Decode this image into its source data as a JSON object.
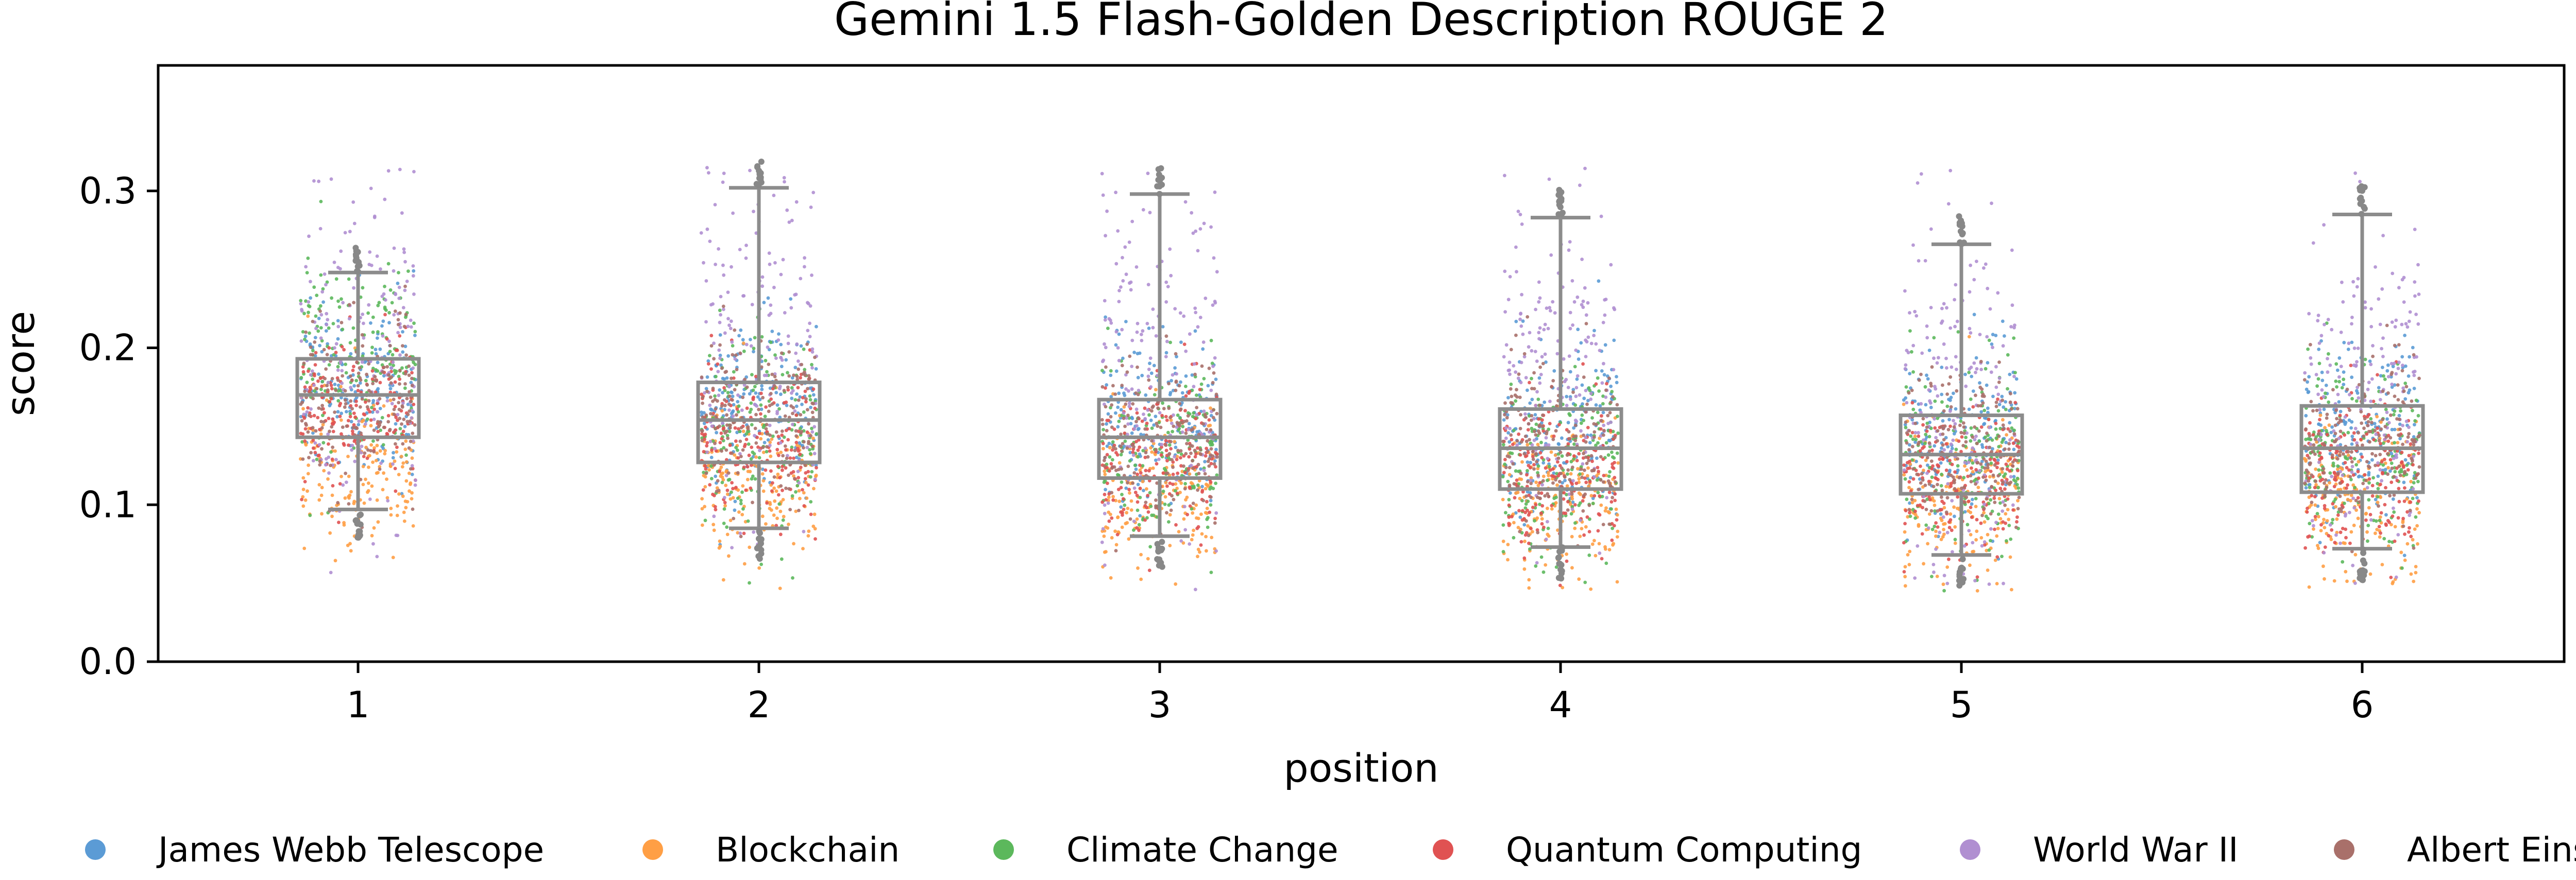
{
  "chart_data": {
    "type": "box",
    "title": "Gemini 1.5 Flash-Golden Description ROUGE 2",
    "xlabel": "position",
    "ylabel": "score",
    "ylim": [
      0,
      0.38
    ],
    "y_ticks": [
      0.0,
      0.1,
      0.2,
      0.3
    ],
    "y_tick_labels": [
      "0.0",
      "0.1",
      "0.2",
      "0.3"
    ],
    "grid": false,
    "legend_placement": "bottom",
    "categories": [
      "1",
      "2",
      "3",
      "4",
      "5",
      "6"
    ],
    "boxes": [
      {
        "position": "1",
        "whisker_low": 0.097,
        "q1": 0.143,
        "median": 0.17,
        "q3": 0.193,
        "whisker_high": 0.248
      },
      {
        "position": "2",
        "whisker_low": 0.085,
        "q1": 0.127,
        "median": 0.154,
        "q3": 0.178,
        "whisker_high": 0.302
      },
      {
        "position": "3",
        "whisker_low": 0.08,
        "q1": 0.117,
        "median": 0.143,
        "q3": 0.167,
        "whisker_high": 0.298
      },
      {
        "position": "4",
        "whisker_low": 0.073,
        "q1": 0.11,
        "median": 0.136,
        "q3": 0.161,
        "whisker_high": 0.283
      },
      {
        "position": "5",
        "whisker_low": 0.068,
        "q1": 0.107,
        "median": 0.132,
        "q3": 0.157,
        "whisker_high": 0.266
      },
      {
        "position": "6",
        "whisker_low": 0.072,
        "q1": 0.108,
        "median": 0.136,
        "q3": 0.163,
        "whisker_high": 0.285
      }
    ],
    "series": [
      {
        "name": "James Webb Telescope",
        "color": "#5b9bd5",
        "center": [
          0.175,
          0.165,
          0.155,
          0.15,
          0.145,
          0.15
        ],
        "spread": 0.028
      },
      {
        "name": "Blockchain",
        "color": "#ff9f45",
        "center": [
          0.125,
          0.115,
          0.108,
          0.102,
          0.1,
          0.102
        ],
        "spread": 0.025
      },
      {
        "name": "Climate Change",
        "color": "#5cb85c",
        "center": [
          0.195,
          0.15,
          0.138,
          0.128,
          0.128,
          0.13
        ],
        "spread": 0.03
      },
      {
        "name": "Quantum Computing",
        "color": "#e05252",
        "center": [
          0.16,
          0.14,
          0.128,
          0.12,
          0.118,
          0.12
        ],
        "spread": 0.025
      },
      {
        "name": "World War II",
        "color": "#b08fd1",
        "center": [
          0.19,
          0.2,
          0.185,
          0.18,
          0.17,
          0.18
        ],
        "spread": 0.055
      },
      {
        "name": "Albert Einstein",
        "color": "#a9706a",
        "center": [
          0.17,
          0.155,
          0.145,
          0.14,
          0.135,
          0.14
        ],
        "spread": 0.025
      }
    ],
    "colors": {
      "box": "#8c8c8c",
      "outlier": "#888888"
    }
  }
}
